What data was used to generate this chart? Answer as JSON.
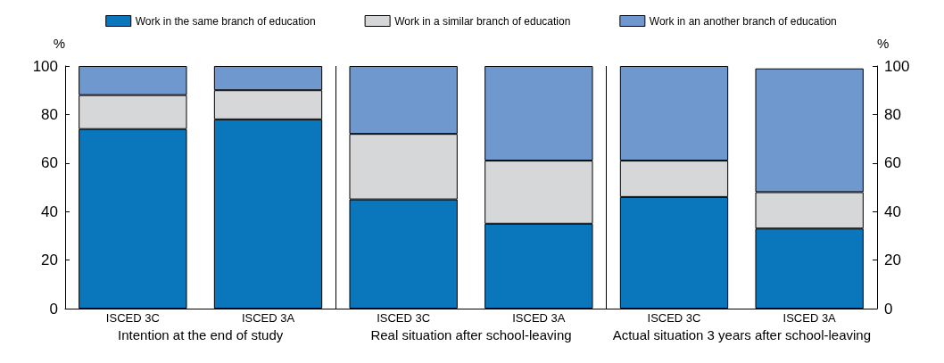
{
  "chart_data": {
    "type": "bar",
    "stacked": true,
    "categories": [
      "ISCED 3C",
      "ISCED 3A",
      "ISCED 3C",
      "ISCED 3A",
      "ISCED 3C",
      "ISCED 3A"
    ],
    "series": [
      {
        "name": "Work in the same branch of education",
        "color": "#0a77bd",
        "values": [
          74,
          78,
          45,
          35,
          46,
          33
        ]
      },
      {
        "name": "Work in a similar branch of education",
        "color": "#d6d7d9",
        "values": [
          14,
          12,
          27,
          26,
          15,
          15
        ]
      },
      {
        "name": "Work in an another branch of education",
        "color": "#6f98cf",
        "values": [
          12,
          10,
          28,
          39,
          39,
          51
        ]
      }
    ],
    "ylabel": "%",
    "y2label": "%",
    "ylim": [
      0,
      100
    ],
    "yticks": [
      0,
      20,
      40,
      60,
      80,
      100
    ],
    "y2lim": [
      0,
      100
    ],
    "y2ticks": [
      0,
      20,
      40,
      60,
      80,
      100
    ],
    "annotations": [
      "Intention at the end of study",
      "Real situation after school-leaving",
      "Actual situation 3 years after school-leaving"
    ],
    "legend": "top",
    "grid": false
  }
}
